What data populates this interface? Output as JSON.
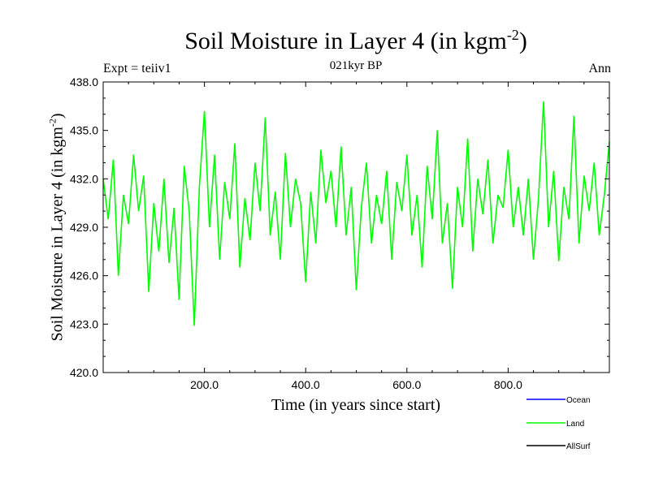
{
  "header": {
    "title": "Soil Moisture in Layer 4 (in kgm",
    "title_sup": "-2",
    "title_close": ")",
    "subtitle": "021kyr BP",
    "left": "Expt = teiiv1",
    "right": "Ann"
  },
  "axes": {
    "xlabel": "Time (in years since start)",
    "ylabel": "Soil Moisture in Layer 4 (in kgm",
    "ylabel_sup": "-2",
    "ylabel_close": ")"
  },
  "legend": [
    {
      "name": "Ocean",
      "color": "#0000ff"
    },
    {
      "name": "Land",
      "color": "#00ff00"
    },
    {
      "name": "AllSurf",
      "color": "#000000"
    }
  ],
  "chart_data": {
    "type": "line",
    "xlim": [
      0,
      1000
    ],
    "ylim": [
      420,
      438
    ],
    "xticks": [
      200,
      400,
      600,
      800
    ],
    "xtick_labels": [
      "200.0",
      "400.0",
      "600.0",
      "800.0"
    ],
    "yticks": [
      420,
      423,
      426,
      429,
      432,
      435,
      438
    ],
    "ytick_labels": [
      "420.0",
      "423.0",
      "426.0",
      "429.0",
      "432.0",
      "435.0",
      "438.0"
    ],
    "series": [
      {
        "name": "Land",
        "color": "#00ff00",
        "x": [
          0,
          10,
          20,
          30,
          40,
          50,
          60,
          70,
          80,
          90,
          100,
          110,
          120,
          130,
          140,
          150,
          160,
          170,
          180,
          190,
          200,
          210,
          220,
          230,
          240,
          250,
          260,
          270,
          280,
          290,
          300,
          310,
          320,
          330,
          340,
          350,
          360,
          370,
          380,
          390,
          400,
          410,
          420,
          430,
          440,
          450,
          460,
          470,
          480,
          490,
          500,
          510,
          520,
          530,
          540,
          550,
          560,
          570,
          580,
          590,
          600,
          610,
          620,
          630,
          640,
          650,
          660,
          670,
          680,
          690,
          700,
          710,
          720,
          730,
          740,
          750,
          760,
          770,
          780,
          790,
          800,
          810,
          820,
          830,
          840,
          850,
          860,
          870,
          880,
          890,
          900,
          910,
          920,
          930,
          940,
          950,
          960,
          970,
          980,
          990,
          1000
        ],
        "y": [
          432.0,
          429.5,
          433.2,
          426.0,
          431.0,
          429.2,
          433.5,
          430.0,
          432.2,
          425.0,
          430.5,
          427.5,
          432.0,
          426.8,
          430.2,
          424.5,
          432.8,
          430.0,
          422.9,
          431.5,
          436.2,
          429.0,
          433.5,
          427.0,
          431.8,
          429.5,
          434.2,
          426.5,
          430.8,
          428.2,
          433.0,
          430.0,
          435.8,
          428.5,
          431.2,
          427.0,
          433.6,
          429.0,
          432.0,
          430.5,
          425.6,
          431.2,
          428.0,
          433.8,
          430.5,
          432.5,
          429.0,
          434.0,
          428.5,
          431.5,
          425.1,
          430.2,
          433.0,
          428.0,
          431.0,
          429.2,
          432.5,
          427.0,
          431.8,
          430.0,
          433.5,
          428.5,
          431.0,
          426.5,
          432.8,
          429.5,
          435.0,
          428.0,
          430.5,
          425.2,
          431.5,
          429.0,
          434.5,
          427.5,
          432.0,
          429.8,
          433.2,
          428.0,
          431.0,
          430.2,
          433.8,
          429.0,
          431.5,
          428.5,
          432.0,
          427.0,
          430.8,
          436.8,
          429.0,
          432.5,
          426.9,
          431.5,
          429.5,
          435.9,
          428.0,
          432.2,
          430.0,
          433.0,
          428.5,
          431.0,
          434.3
        ]
      }
    ]
  }
}
